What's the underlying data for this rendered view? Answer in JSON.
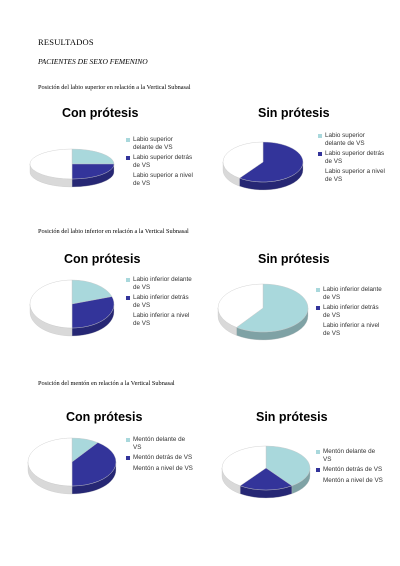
{
  "heading": "RESULTADOS",
  "subheading": "PACIENTES DE SEXO FEMENINO",
  "colors": {
    "light": "#a9d8dc",
    "dark": "#33349a",
    "white": "#ffffff"
  },
  "sections": [
    {
      "title": "Posición del labio superior en relación a la Vertical Subnasal"
    },
    {
      "title": "Posición del labio inferior en relación a la Vertical Subnasal"
    },
    {
      "title": "Posición del mentón en relación a la Vertical Subnasal"
    }
  ],
  "chart_data": [
    {
      "type": "pie",
      "title": "Con prótesis",
      "categories": [
        "Labio superior delante de VS",
        "Labio superior detrás de VS",
        "Labio superior a nivel de VS"
      ],
      "values": [
        25,
        25,
        50
      ],
      "colors": [
        "#a9d8dc",
        "#33349a",
        "#ffffff"
      ],
      "legend": "right"
    },
    {
      "type": "pie",
      "title": "Sin prótesis",
      "categories": [
        "Labio superior delante de VS",
        "Labio superior detrás de VS",
        "Labio superior a nivel de VS"
      ],
      "values": [
        0,
        60,
        40
      ],
      "colors": [
        "#a9d8dc",
        "#33349a",
        "#ffffff"
      ],
      "legend": "right"
    },
    {
      "type": "pie",
      "title": "Con prótesis",
      "categories": [
        "Labio inferior delante de VS",
        "Labio inferior detrás de VS",
        "Labio inferior a nivel de VS"
      ],
      "values": [
        20,
        30,
        50
      ],
      "colors": [
        "#a9d8dc",
        "#33349a",
        "#ffffff"
      ],
      "legend": "right"
    },
    {
      "type": "pie",
      "title": "Sin prótesis",
      "categories": [
        "Labio inferior delante de VS",
        "Labio inferior detrás de VS",
        "Labio inferior a nivel de VS"
      ],
      "values": [
        60,
        0,
        40
      ],
      "colors": [
        "#a9d8dc",
        "#33349a",
        "#ffffff"
      ],
      "legend": "right"
    },
    {
      "type": "pie",
      "title": "Con prótesis",
      "categories": [
        "Mentón delante de VS",
        "Mentón detrás de VS",
        "Mentón a nivel de VS"
      ],
      "values": [
        10,
        40,
        50
      ],
      "colors": [
        "#a9d8dc",
        "#33349a",
        "#ffffff"
      ],
      "legend": "right"
    },
    {
      "type": "pie",
      "title": "Sin prótesis",
      "categories": [
        "Mentón delante de VS",
        "Mentón detrás de VS",
        "Mentón a nivel de VS"
      ],
      "values": [
        40,
        20,
        40
      ],
      "colors": [
        "#a9d8dc",
        "#33349a",
        "#ffffff"
      ],
      "legend": "right"
    }
  ]
}
